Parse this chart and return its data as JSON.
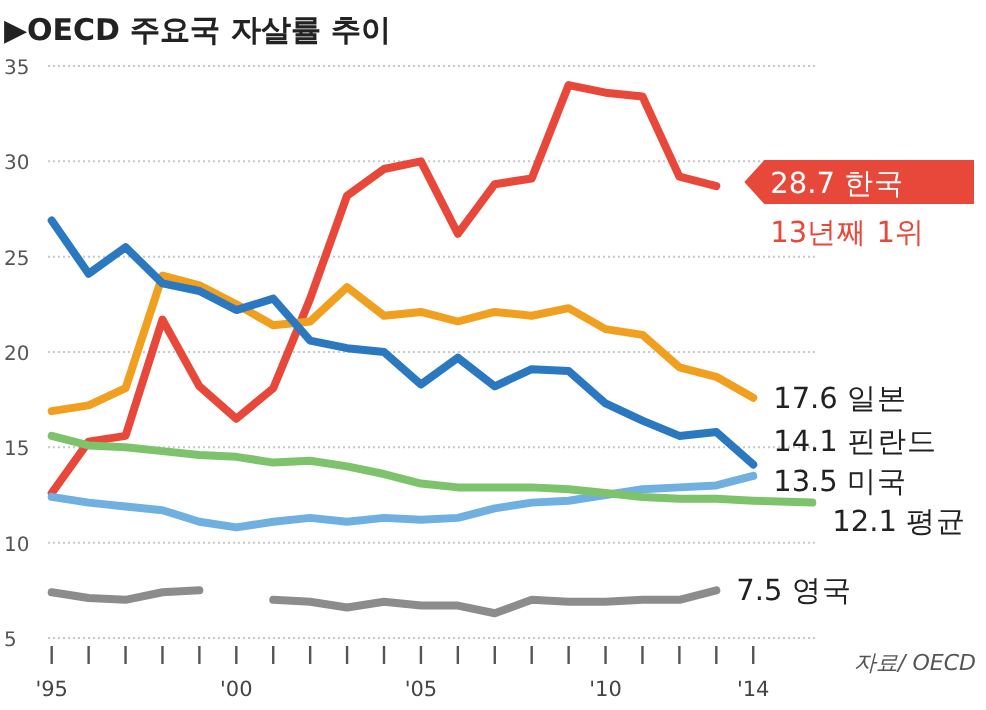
{
  "chart_data": {
    "type": "line",
    "title": "▶OECD 주요국 자살률 추이",
    "x": [
      1995,
      1996,
      1997,
      1998,
      1999,
      2000,
      2001,
      2002,
      2003,
      2004,
      2005,
      2006,
      2007,
      2008,
      2009,
      2010,
      2011,
      2012,
      2013,
      2014
    ],
    "series": [
      {
        "color": "#e8483a",
        "x": [
          1995,
          1996,
          1997,
          1998,
          1999,
          2000,
          2001,
          2002,
          2003,
          2004,
          2005,
          2006,
          2007,
          2008,
          2009,
          2010,
          2011,
          2012,
          2013
        ],
        "values": [
          12.6,
          15.3,
          15.6,
          21.7,
          18.2,
          16.5,
          18.1,
          22.8,
          28.2,
          29.6,
          30.0,
          26.2,
          28.8,
          29.1,
          34.0,
          33.6,
          33.4,
          29.2,
          28.7
        ]
      },
      {
        "color": "#f0a01e",
        "values": [
          16.9,
          17.2,
          18.1,
          24.0,
          23.5,
          22.5,
          21.4,
          21.6,
          23.4,
          21.9,
          22.1,
          21.6,
          22.1,
          21.9,
          22.3,
          21.2,
          20.9,
          19.2,
          18.7,
          17.6
        ]
      },
      {
        "color": "#2a78bf",
        "values": [
          26.9,
          24.1,
          25.5,
          23.6,
          23.2,
          22.2,
          22.8,
          20.6,
          20.2,
          20.0,
          18.3,
          19.7,
          18.2,
          19.1,
          19.0,
          17.3,
          16.4,
          15.6,
          15.8,
          14.1
        ]
      },
      {
        "color": "#6fb0e0",
        "values": [
          12.4,
          12.1,
          11.9,
          11.7,
          11.1,
          10.8,
          11.1,
          11.3,
          11.1,
          11.3,
          11.2,
          11.3,
          11.8,
          12.1,
          12.2,
          12.5,
          12.8,
          12.9,
          13.0,
          13.5
        ]
      },
      {
        "color": "#7dc36b",
        "x": [
          1995,
          1996,
          1997,
          1998,
          1999,
          2000,
          2001,
          2002,
          2003,
          2004,
          2005,
          2006,
          2007,
          2008,
          2009,
          2010,
          2011,
          2012,
          2013,
          2014,
          2015.6
        ],
        "values": [
          15.6,
          15.1,
          15.0,
          14.8,
          14.6,
          14.5,
          14.2,
          14.3,
          14.0,
          13.6,
          13.1,
          12.9,
          12.9,
          12.9,
          12.8,
          12.6,
          12.4,
          12.3,
          12.3,
          12.2,
          12.1
        ]
      },
      {
        "color": "#8c8c8c",
        "values": [
          7.4,
          7.1,
          7.0,
          7.4,
          7.5,
          null,
          7.0,
          6.9,
          6.6,
          6.9,
          6.7,
          6.7,
          6.3,
          7.0,
          6.9,
          6.9,
          7.0,
          7.0,
          7.5,
          null
        ]
      }
    ],
    "xlim": [
      1994.9,
      2015.7
    ],
    "ylim": [
      5,
      35
    ],
    "xticks": [
      {
        "value": 1995,
        "label": "'95"
      },
      {
        "value": 1996,
        "label": null
      },
      {
        "value": 1997,
        "label": null
      },
      {
        "value": 1998,
        "label": null
      },
      {
        "value": 1999,
        "label": null
      },
      {
        "value": 2000,
        "label": "'00"
      },
      {
        "value": 2001,
        "label": null
      },
      {
        "value": 2002,
        "label": null
      },
      {
        "value": 2003,
        "label": null
      },
      {
        "value": 2004,
        "label": null
      },
      {
        "value": 2005,
        "label": "'05"
      },
      {
        "value": 2006,
        "label": null
      },
      {
        "value": 2007,
        "label": null
      },
      {
        "value": 2008,
        "label": null
      },
      {
        "value": 2009,
        "label": null
      },
      {
        "value": 2010,
        "label": "'10"
      },
      {
        "value": 2011,
        "label": null
      },
      {
        "value": 2012,
        "label": null
      },
      {
        "value": 2013,
        "label": null
      },
      {
        "value": 2014,
        "label": "'14"
      }
    ],
    "yticks": [
      5,
      10,
      15,
      20,
      25,
      30,
      35
    ],
    "grid": "y",
    "line_style": "solid",
    "marker": "none",
    "annotations": [
      {
        "text": "28.7 한국",
        "x": 2013,
        "y": 28.7
      },
      "13년째 1위",
      {
        "text": "17.6 일본",
        "x": 2014,
        "y": 17.6
      },
      {
        "text": "14.1 핀란드",
        "x": 2014,
        "y": 14.1
      },
      {
        "text": "13.5 미국",
        "x": 2014,
        "y": 13.5
      },
      {
        "text": "12.1 평균",
        "x": 2015.6,
        "y": 12.1
      },
      {
        "text": "7.5 영국",
        "x": 2013,
        "y": 7.5
      },
      "자료/ OECD"
    ]
  }
}
